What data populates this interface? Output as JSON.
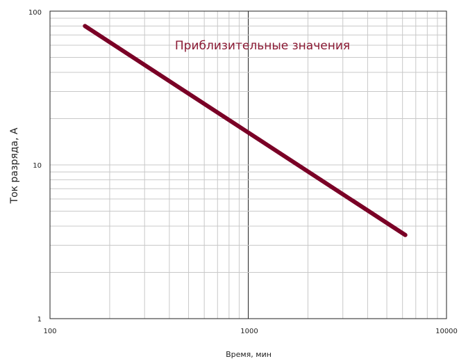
{
  "chart_data": {
    "type": "line",
    "title": "",
    "xlabel": "Время, мин",
    "ylabel": "Ток разряда, А",
    "xscale": "log",
    "yscale": "log",
    "xlim": [
      100,
      10000
    ],
    "ylim": [
      1,
      100
    ],
    "grid": true,
    "x_ticks": [
      "100",
      "1000",
      "10000"
    ],
    "y_ticks": [
      "1",
      "10",
      "100"
    ],
    "series": [
      {
        "x": [
          150,
          6200
        ],
        "y": [
          80,
          3.5
        ]
      }
    ],
    "annotation": "Приблизительные значения",
    "colors": {
      "line": "#7a0026",
      "annotation": "#8b1a34",
      "grid": "#c8c8c8",
      "axis": "#222222"
    }
  }
}
